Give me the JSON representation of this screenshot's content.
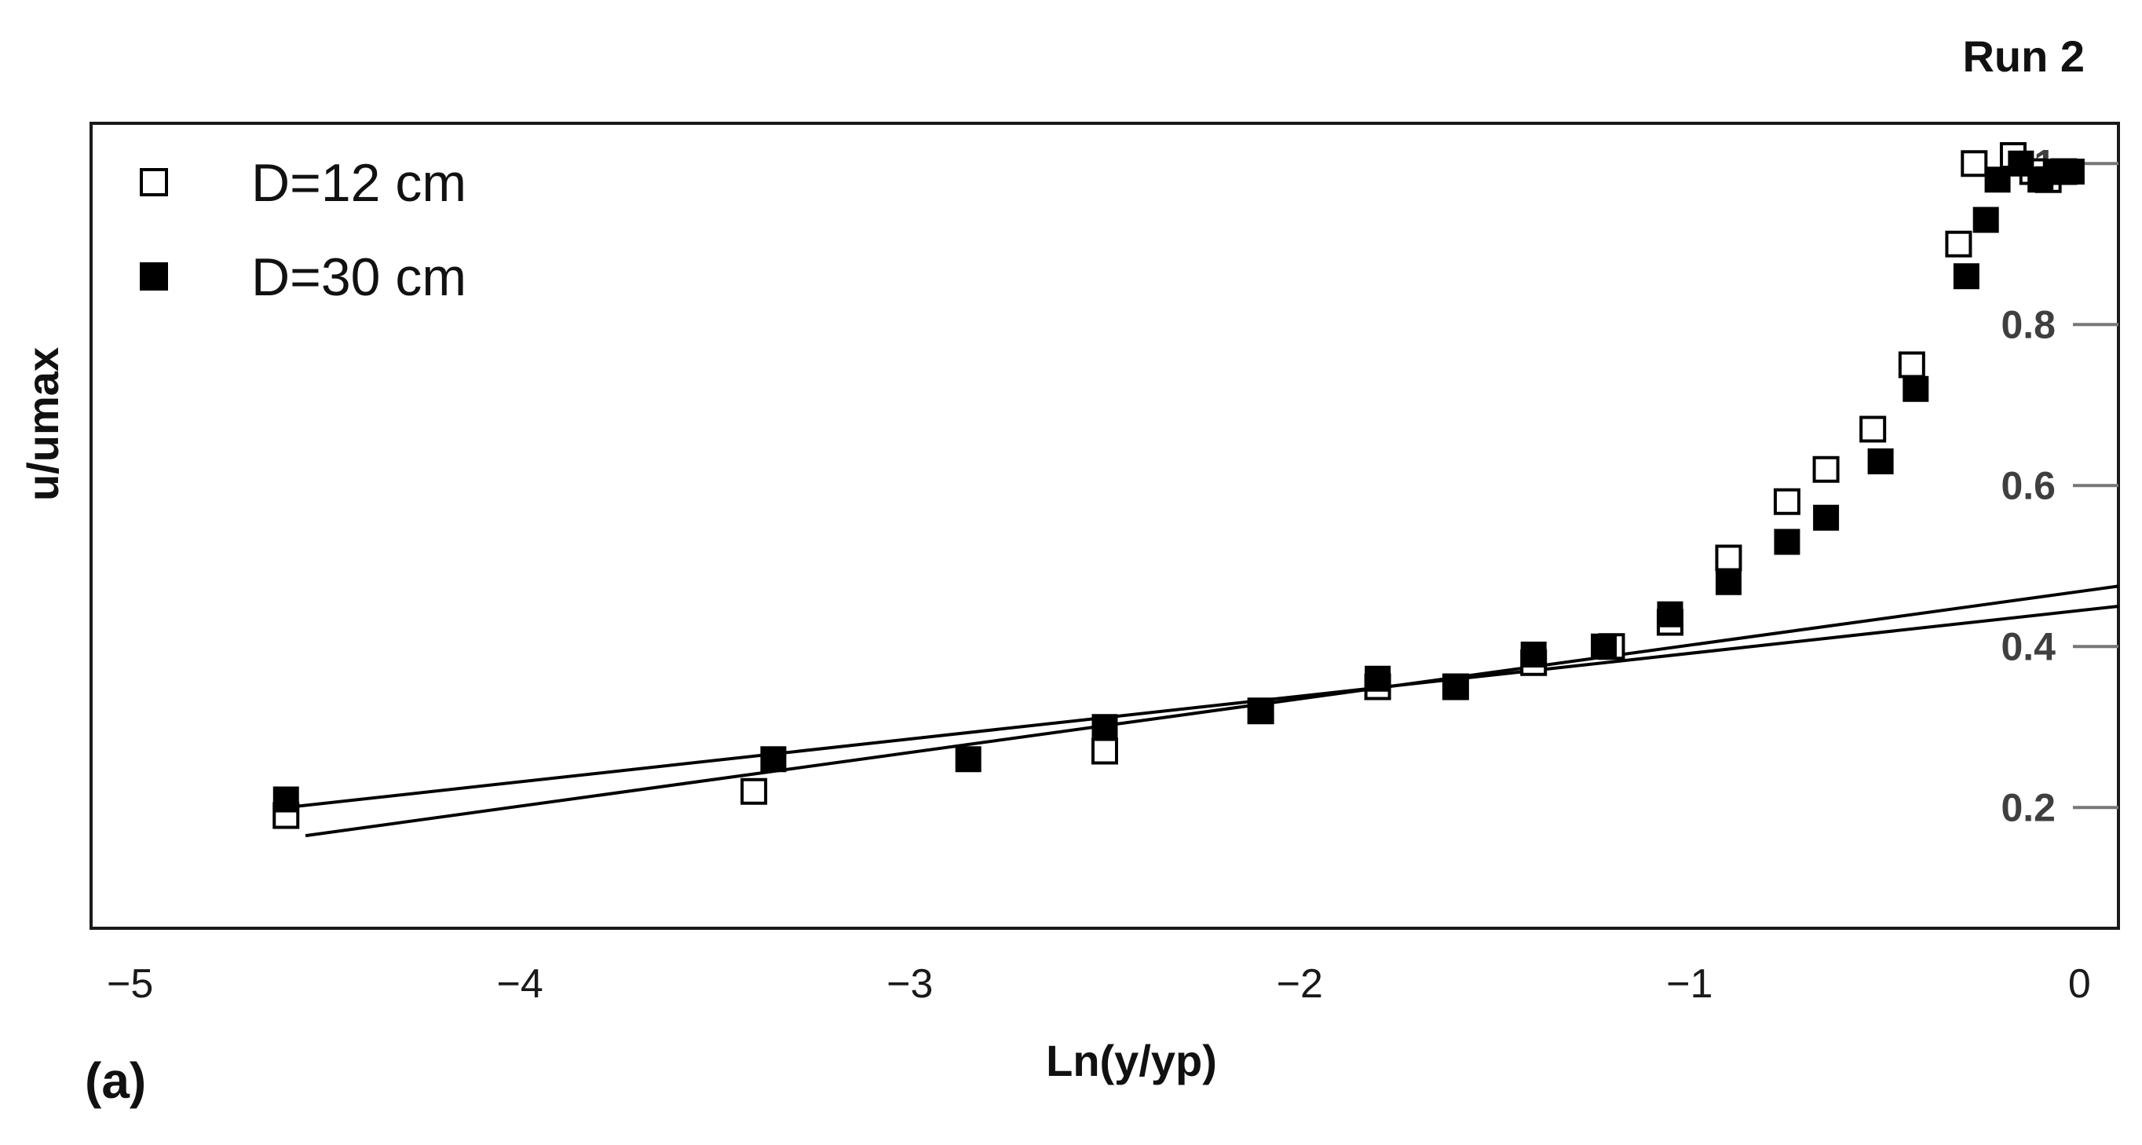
{
  "chart_data": {
    "type": "scatter",
    "title": "Run 2",
    "panel_label": "(a)",
    "xlabel": "Ln(y/yp)",
    "ylabel": "u/umax",
    "xlim": [
      -5.1,
      0.1
    ],
    "ylim": [
      0.05,
      1.05
    ],
    "x_ticks": [
      -5,
      -4,
      -3,
      -2,
      -1,
      0
    ],
    "x_tick_labels": [
      "−5",
      "−4",
      "−3",
      "−2",
      "−1",
      "0"
    ],
    "y_ticks": [
      0.2,
      0.4,
      0.6,
      0.8,
      1.0
    ],
    "y_tick_labels": [
      "0.2",
      "0.4",
      "0.6",
      "0.8",
      "1"
    ],
    "y_axis_position": "right",
    "grid": false,
    "legend_position": "top-left",
    "series": [
      {
        "name": "D=12 cm",
        "marker": "open-square",
        "color": "#000000",
        "points": [
          [
            -4.6,
            0.19
          ],
          [
            -3.4,
            0.22
          ],
          [
            -2.5,
            0.27
          ],
          [
            -2.1,
            0.32
          ],
          [
            -1.8,
            0.35
          ],
          [
            -1.6,
            0.35
          ],
          [
            -1.4,
            0.38
          ],
          [
            -1.2,
            0.4
          ],
          [
            -1.05,
            0.43
          ],
          [
            -0.9,
            0.51
          ],
          [
            -0.75,
            0.58
          ],
          [
            -0.65,
            0.62
          ],
          [
            -0.53,
            0.67
          ],
          [
            -0.43,
            0.75
          ],
          [
            -0.31,
            0.9
          ],
          [
            -0.27,
            1.0
          ],
          [
            -0.17,
            1.01
          ],
          [
            -0.12,
            0.99
          ],
          [
            -0.08,
            0.98
          ],
          [
            -0.04,
            0.99
          ]
        ]
      },
      {
        "name": "D=30 cm",
        "marker": "filled-square",
        "color": "#000000",
        "points": [
          [
            -4.6,
            0.21
          ],
          [
            -3.35,
            0.26
          ],
          [
            -2.85,
            0.26
          ],
          [
            -2.5,
            0.3
          ],
          [
            -2.1,
            0.32
          ],
          [
            -1.8,
            0.36
          ],
          [
            -1.6,
            0.35
          ],
          [
            -1.4,
            0.39
          ],
          [
            -1.22,
            0.4
          ],
          [
            -1.05,
            0.44
          ],
          [
            -0.9,
            0.48
          ],
          [
            -0.75,
            0.53
          ],
          [
            -0.65,
            0.56
          ],
          [
            -0.51,
            0.63
          ],
          [
            -0.42,
            0.72
          ],
          [
            -0.29,
            0.86
          ],
          [
            -0.24,
            0.93
          ],
          [
            -0.21,
            0.98
          ],
          [
            -0.15,
            1.0
          ],
          [
            -0.1,
            0.98
          ],
          [
            -0.06,
            0.99
          ],
          [
            -0.02,
            0.99
          ]
        ]
      }
    ],
    "fit_lines": [
      {
        "points": [
          [
            -4.6,
            0.2
          ],
          [
            0.1,
            0.45
          ]
        ],
        "color": "#000000"
      },
      {
        "points": [
          [
            -4.55,
            0.165
          ],
          [
            0.1,
            0.475
          ]
        ],
        "color": "#000000"
      }
    ]
  }
}
